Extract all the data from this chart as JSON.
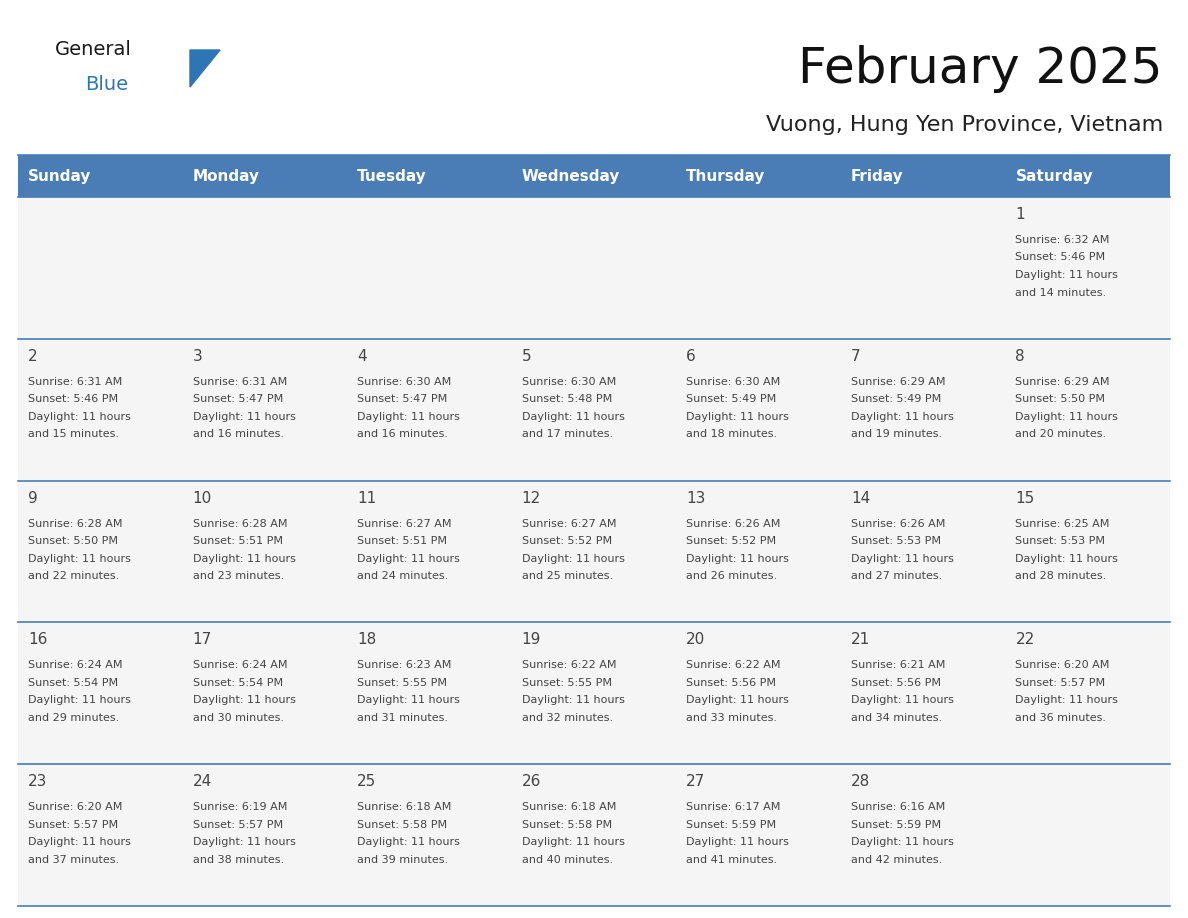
{
  "title": "February 2025",
  "subtitle": "Vuong, Hung Yen Province, Vietnam",
  "header_color": "#4A7DB5",
  "header_text_color": "#FFFFFF",
  "cell_bg_color": "#F5F5F5",
  "border_color": "#4A7DB5",
  "text_color": "#444444",
  "days_of_week": [
    "Sunday",
    "Monday",
    "Tuesday",
    "Wednesday",
    "Thursday",
    "Friday",
    "Saturday"
  ],
  "calendar_data": [
    [
      null,
      null,
      null,
      null,
      null,
      null,
      {
        "day": 1,
        "sunrise": "6:32 AM",
        "sunset": "5:46 PM",
        "daylight_line3": "Daylight: 11 hours",
        "daylight_line4": "and 14 minutes."
      }
    ],
    [
      {
        "day": 2,
        "sunrise": "6:31 AM",
        "sunset": "5:46 PM",
        "daylight_line3": "Daylight: 11 hours",
        "daylight_line4": "and 15 minutes."
      },
      {
        "day": 3,
        "sunrise": "6:31 AM",
        "sunset": "5:47 PM",
        "daylight_line3": "Daylight: 11 hours",
        "daylight_line4": "and 16 minutes."
      },
      {
        "day": 4,
        "sunrise": "6:30 AM",
        "sunset": "5:47 PM",
        "daylight_line3": "Daylight: 11 hours",
        "daylight_line4": "and 16 minutes."
      },
      {
        "day": 5,
        "sunrise": "6:30 AM",
        "sunset": "5:48 PM",
        "daylight_line3": "Daylight: 11 hours",
        "daylight_line4": "and 17 minutes."
      },
      {
        "day": 6,
        "sunrise": "6:30 AM",
        "sunset": "5:49 PM",
        "daylight_line3": "Daylight: 11 hours",
        "daylight_line4": "and 18 minutes."
      },
      {
        "day": 7,
        "sunrise": "6:29 AM",
        "sunset": "5:49 PM",
        "daylight_line3": "Daylight: 11 hours",
        "daylight_line4": "and 19 minutes."
      },
      {
        "day": 8,
        "sunrise": "6:29 AM",
        "sunset": "5:50 PM",
        "daylight_line3": "Daylight: 11 hours",
        "daylight_line4": "and 20 minutes."
      }
    ],
    [
      {
        "day": 9,
        "sunrise": "6:28 AM",
        "sunset": "5:50 PM",
        "daylight_line3": "Daylight: 11 hours",
        "daylight_line4": "and 22 minutes."
      },
      {
        "day": 10,
        "sunrise": "6:28 AM",
        "sunset": "5:51 PM",
        "daylight_line3": "Daylight: 11 hours",
        "daylight_line4": "and 23 minutes."
      },
      {
        "day": 11,
        "sunrise": "6:27 AM",
        "sunset": "5:51 PM",
        "daylight_line3": "Daylight: 11 hours",
        "daylight_line4": "and 24 minutes."
      },
      {
        "day": 12,
        "sunrise": "6:27 AM",
        "sunset": "5:52 PM",
        "daylight_line3": "Daylight: 11 hours",
        "daylight_line4": "and 25 minutes."
      },
      {
        "day": 13,
        "sunrise": "6:26 AM",
        "sunset": "5:52 PM",
        "daylight_line3": "Daylight: 11 hours",
        "daylight_line4": "and 26 minutes."
      },
      {
        "day": 14,
        "sunrise": "6:26 AM",
        "sunset": "5:53 PM",
        "daylight_line3": "Daylight: 11 hours",
        "daylight_line4": "and 27 minutes."
      },
      {
        "day": 15,
        "sunrise": "6:25 AM",
        "sunset": "5:53 PM",
        "daylight_line3": "Daylight: 11 hours",
        "daylight_line4": "and 28 minutes."
      }
    ],
    [
      {
        "day": 16,
        "sunrise": "6:24 AM",
        "sunset": "5:54 PM",
        "daylight_line3": "Daylight: 11 hours",
        "daylight_line4": "and 29 minutes."
      },
      {
        "day": 17,
        "sunrise": "6:24 AM",
        "sunset": "5:54 PM",
        "daylight_line3": "Daylight: 11 hours",
        "daylight_line4": "and 30 minutes."
      },
      {
        "day": 18,
        "sunrise": "6:23 AM",
        "sunset": "5:55 PM",
        "daylight_line3": "Daylight: 11 hours",
        "daylight_line4": "and 31 minutes."
      },
      {
        "day": 19,
        "sunrise": "6:22 AM",
        "sunset": "5:55 PM",
        "daylight_line3": "Daylight: 11 hours",
        "daylight_line4": "and 32 minutes."
      },
      {
        "day": 20,
        "sunrise": "6:22 AM",
        "sunset": "5:56 PM",
        "daylight_line3": "Daylight: 11 hours",
        "daylight_line4": "and 33 minutes."
      },
      {
        "day": 21,
        "sunrise": "6:21 AM",
        "sunset": "5:56 PM",
        "daylight_line3": "Daylight: 11 hours",
        "daylight_line4": "and 34 minutes."
      },
      {
        "day": 22,
        "sunrise": "6:20 AM",
        "sunset": "5:57 PM",
        "daylight_line3": "Daylight: 11 hours",
        "daylight_line4": "and 36 minutes."
      }
    ],
    [
      {
        "day": 23,
        "sunrise": "6:20 AM",
        "sunset": "5:57 PM",
        "daylight_line3": "Daylight: 11 hours",
        "daylight_line4": "and 37 minutes."
      },
      {
        "day": 24,
        "sunrise": "6:19 AM",
        "sunset": "5:57 PM",
        "daylight_line3": "Daylight: 11 hours",
        "daylight_line4": "and 38 minutes."
      },
      {
        "day": 25,
        "sunrise": "6:18 AM",
        "sunset": "5:58 PM",
        "daylight_line3": "Daylight: 11 hours",
        "daylight_line4": "and 39 minutes."
      },
      {
        "day": 26,
        "sunrise": "6:18 AM",
        "sunset": "5:58 PM",
        "daylight_line3": "Daylight: 11 hours",
        "daylight_line4": "and 40 minutes."
      },
      {
        "day": 27,
        "sunrise": "6:17 AM",
        "sunset": "5:59 PM",
        "daylight_line3": "Daylight: 11 hours",
        "daylight_line4": "and 41 minutes."
      },
      {
        "day": 28,
        "sunrise": "6:16 AM",
        "sunset": "5:59 PM",
        "daylight_line3": "Daylight: 11 hours",
        "daylight_line4": "and 42 minutes."
      },
      null
    ]
  ],
  "logo_text1": "General",
  "logo_text2": "Blue",
  "logo_color1": "#1a1a1a",
  "logo_color2": "#2E75B6",
  "triangle_color": "#2E75B6",
  "fig_width": 11.88,
  "fig_height": 9.18,
  "dpi": 100
}
